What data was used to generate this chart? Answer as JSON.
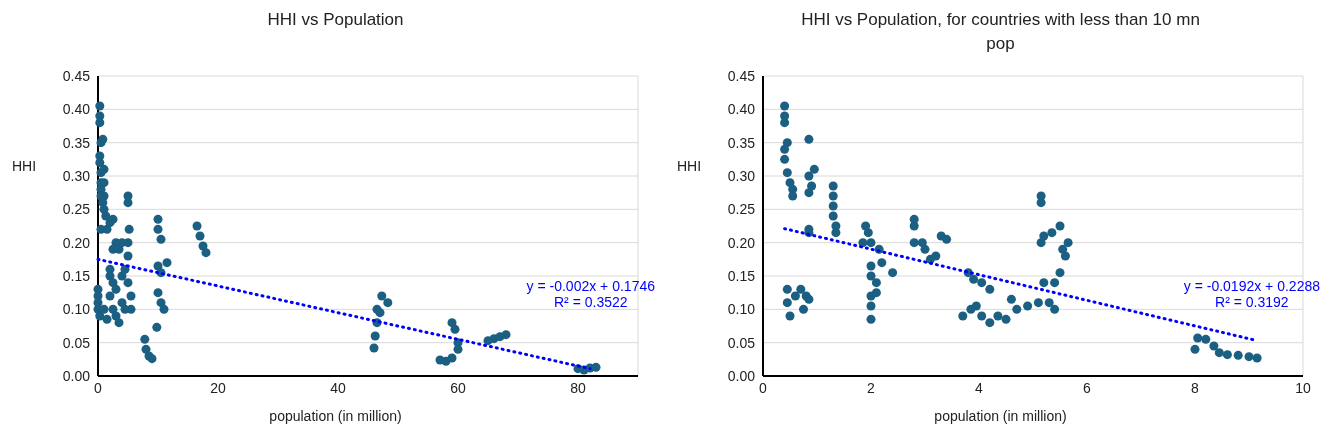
{
  "chart_data": [
    {
      "type": "scatter",
      "title": "HHI vs Population",
      "xlabel": "population (in million)",
      "ylabel": "HHI",
      "xlim": [
        0,
        90
      ],
      "xticks": [
        0,
        20,
        40,
        60,
        80
      ],
      "ylim": [
        0,
        0.45
      ],
      "yticks": [
        {
          "value": 0,
          "label": "0.00"
        },
        {
          "value": 0.05,
          "label": "0.05"
        },
        {
          "value": 0.1,
          "label": "0.10"
        },
        {
          "value": 0.15,
          "label": "0.15"
        },
        {
          "value": 0.2,
          "label": "0.20"
        },
        {
          "value": 0.25,
          "label": "0.25"
        },
        {
          "value": 0.3,
          "label": "0.30"
        },
        {
          "value": 0.35,
          "label": "0.35"
        },
        {
          "value": 0.4,
          "label": "0.40"
        },
        {
          "value": 0.45,
          "label": "0.45"
        }
      ],
      "grid": true,
      "marker": "circle",
      "line_style": "dotted",
      "annotations": [
        "y = -0.002x + 0.1746",
        "R² = 0.3522"
      ],
      "series": [
        {
          "color": "#1b5f82",
          "x": [
            0.3,
            0.3,
            0.3,
            0.5,
            0.8,
            0.3,
            0.3,
            0.5,
            1,
            0.5,
            1,
            0.5,
            1,
            0.8,
            0.5,
            1,
            1.3,
            0.5,
            1.5,
            2,
            2.5,
            3,
            2.5,
            2,
            2,
            2.5,
            3,
            0,
            0,
            0,
            0,
            0.3,
            1,
            1.5,
            2,
            2.5,
            3,
            3.5,
            4,
            4,
            4.5,
            5,
            5,
            5.2,
            5,
            5,
            5,
            5.5,
            5.5,
            4.5,
            3.5,
            4,
            10,
            10,
            10.5,
            10,
            10.5,
            11.5,
            10,
            10.5,
            11,
            9.8,
            7.8,
            8,
            8.5,
            9,
            16.5,
            17,
            17.5,
            18,
            46,
            46.2,
            46.5,
            46.5,
            47,
            47.3,
            48.3,
            57,
            58,
            59,
            59,
            59.5,
            60,
            60,
            65,
            66,
            67,
            68,
            80,
            81,
            82,
            83
          ],
          "values": [
            0.405,
            0.39,
            0.38,
            0.35,
            0.355,
            0.33,
            0.32,
            0.305,
            0.31,
            0.29,
            0.29,
            0.28,
            0.27,
            0.26,
            0.27,
            0.25,
            0.24,
            0.22,
            0.22,
            0.23,
            0.235,
            0.2,
            0.19,
            0.16,
            0.15,
            0.14,
            0.13,
            0.13,
            0.12,
            0.11,
            0.1,
            0.09,
            0.1,
            0.085,
            0.12,
            0.1,
            0.09,
            0.08,
            0.11,
            0.15,
            0.16,
            0.14,
            0.2,
            0.22,
            0.18,
            0.27,
            0.26,
            0.12,
            0.1,
            0.1,
            0.19,
            0.2,
            0.235,
            0.22,
            0.205,
            0.165,
            0.155,
            0.17,
            0.125,
            0.11,
            0.1,
            0.073,
            0.055,
            0.04,
            0.03,
            0.026,
            0.225,
            0.21,
            0.195,
            0.185,
            0.042,
            0.06,
            0.08,
            0.1,
            0.095,
            0.12,
            0.11,
            0.024,
            0.022,
            0.027,
            0.08,
            0.07,
            0.05,
            0.04,
            0.053,
            0.056,
            0.059,
            0.062,
            0.011,
            0.009,
            0.012,
            0.013
          ]
        },
        {
          "type": "line",
          "color": "#0000ff",
          "marker": "none",
          "x": [
            0,
            82
          ],
          "values": [
            0.175,
            0.011
          ]
        }
      ]
    },
    {
      "type": "scatter",
      "title": "HHI vs Population, for countries with less than 10 mn pop",
      "xlabel": "population (in million)",
      "ylabel": "HHI",
      "xlim": [
        0,
        10
      ],
      "xticks": [
        0,
        2,
        4,
        6,
        8,
        10
      ],
      "ylim": [
        0,
        0.45
      ],
      "yticks": [
        {
          "value": 0,
          "label": "0.00"
        },
        {
          "value": 0.05,
          "label": "0.05"
        },
        {
          "value": 0.1,
          "label": "0.10"
        },
        {
          "value": 0.15,
          "label": "0.15"
        },
        {
          "value": 0.2,
          "label": "0.20"
        },
        {
          "value": 0.25,
          "label": "0.25"
        },
        {
          "value": 0.3,
          "label": "0.30"
        },
        {
          "value": 0.35,
          "label": "0.35"
        },
        {
          "value": 0.4,
          "label": "0.40"
        },
        {
          "value": 0.45,
          "label": "0.45"
        }
      ],
      "grid": true,
      "marker": "circle",
      "line_style": "dotted",
      "annotations": [
        "y = -0.0192x + 0.2288",
        "R² = 0.3192"
      ],
      "series": [
        {
          "color": "#1b5f82",
          "x": [
            0.4,
            0.4,
            0.4,
            0.45,
            0.4,
            0.4,
            0.45,
            0.5,
            0.55,
            0.55,
            0.85,
            0.85,
            0.9,
            0.95,
            0.85,
            0.85,
            0.85,
            1.3,
            1.3,
            1.3,
            1.3,
            1.35,
            1.35,
            0.45,
            0.45,
            0.5,
            0.6,
            0.7,
            0.75,
            0.8,
            0.85,
            1.9,
            1.95,
            1.85,
            2,
            2.15,
            2,
            2,
            2.1,
            2.2,
            2.4,
            2,
            2,
            2,
            2.1,
            2.8,
            2.8,
            2.8,
            2.95,
            3,
            3.1,
            3.2,
            3.3,
            3.4,
            3.8,
            3.9,
            4.05,
            4.2,
            3.7,
            3.85,
            3.95,
            4.05,
            4.2,
            4.35,
            4.5,
            4.6,
            4.7,
            4.9,
            5.1,
            5.3,
            5.4,
            5.4,
            5.2,
            5.5,
            5.15,
            5.15,
            5.15,
            5.2,
            5.35,
            5.5,
            5.55,
            5.6,
            5.65,
            8,
            8.05,
            8.2,
            8.35,
            8.45,
            8.6,
            8.8,
            9,
            9.15
          ],
          "values": [
            0.405,
            0.39,
            0.38,
            0.35,
            0.34,
            0.325,
            0.305,
            0.29,
            0.28,
            0.27,
            0.355,
            0.3,
            0.285,
            0.31,
            0.275,
            0.22,
            0.215,
            0.285,
            0.27,
            0.255,
            0.24,
            0.225,
            0.215,
            0.13,
            0.11,
            0.09,
            0.12,
            0.13,
            0.1,
            0.12,
            0.115,
            0.225,
            0.215,
            0.2,
            0.2,
            0.19,
            0.165,
            0.15,
            0.14,
            0.17,
            0.155,
            0.12,
            0.105,
            0.085,
            0.125,
            0.235,
            0.225,
            0.2,
            0.2,
            0.19,
            0.175,
            0.18,
            0.21,
            0.205,
            0.155,
            0.145,
            0.14,
            0.13,
            0.09,
            0.1,
            0.105,
            0.09,
            0.08,
            0.09,
            0.085,
            0.115,
            0.1,
            0.105,
            0.11,
            0.11,
            0.1,
            0.14,
            0.14,
            0.155,
            0.27,
            0.26,
            0.2,
            0.21,
            0.215,
            0.225,
            0.19,
            0.18,
            0.2,
            0.04,
            0.057,
            0.055,
            0.045,
            0.035,
            0.032,
            0.031,
            0.029,
            0.027
          ]
        },
        {
          "type": "line",
          "color": "#0000ff",
          "marker": "none",
          "x": [
            0.4,
            9.1
          ],
          "values": [
            0.221,
            0.054
          ]
        }
      ]
    }
  ]
}
